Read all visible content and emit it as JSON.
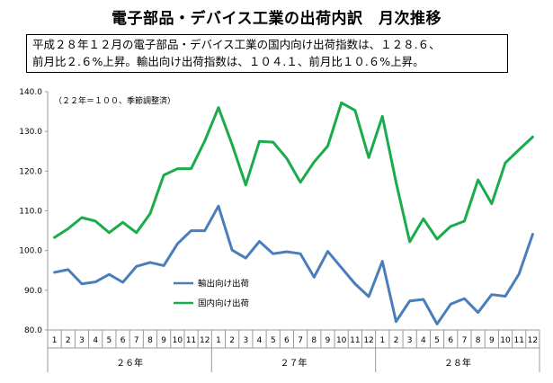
{
  "title": "電子部品・デバイス工業の出荷内訳　月次推移",
  "summary": {
    "line1": "平成２８年１２月の電子部品・デバイス工業の国内向け出荷指数は、１２８.６、",
    "line2": "前月比２.６%上昇。輸出向け出荷指数は、１０４.１、前月比１０.６%上昇。"
  },
  "chart_data": {
    "type": "line",
    "note": "（２２年＝１００、季節調整済）",
    "ylim": [
      80,
      140
    ],
    "yticks": [
      "80.0",
      "90.0",
      "100.0",
      "110.0",
      "120.0",
      "130.0",
      "140.0"
    ],
    "month_labels": [
      "1",
      "2",
      "3",
      "4",
      "5",
      "6",
      "7",
      "8",
      "9",
      "10",
      "11",
      "12",
      "1",
      "2",
      "3",
      "4",
      "5",
      "6",
      "7",
      "8",
      "9",
      "10",
      "11",
      "12",
      "1",
      "2",
      "3",
      "4",
      "5",
      "6",
      "7",
      "8",
      "9",
      "10",
      "11",
      "12"
    ],
    "years": [
      "２６年",
      "２７年",
      "２８年"
    ],
    "series": [
      {
        "name": "輸出向け出荷",
        "color": "#4a7ebb",
        "values": [
          94.5,
          95.2,
          91.6,
          92.1,
          94.0,
          92.0,
          96.0,
          97.0,
          96.2,
          101.7,
          105.0,
          105.0,
          111.2,
          100.1,
          98.1,
          102.3,
          99.2,
          99.7,
          99.2,
          93.3,
          99.8,
          95.7,
          91.6,
          88.4,
          97.3,
          82.1,
          87.3,
          87.7,
          81.5,
          86.5,
          87.9,
          84.4,
          88.9,
          88.5,
          94.1,
          104.1
        ]
      },
      {
        "name": "国内向け出荷",
        "color": "#1aab4a",
        "values": [
          103.3,
          105.5,
          108.3,
          107.4,
          104.5,
          107.1,
          104.5,
          109.3,
          119.0,
          120.6,
          120.6,
          127.6,
          136.0,
          126.7,
          116.5,
          127.5,
          127.3,
          123.2,
          117.2,
          122.3,
          126.3,
          137.2,
          135.3,
          123.4,
          133.8,
          117.2,
          102.2,
          108.0,
          102.9,
          106.1,
          107.4,
          117.8,
          111.8,
          122.1,
          125.4,
          128.6
        ]
      }
    ]
  }
}
